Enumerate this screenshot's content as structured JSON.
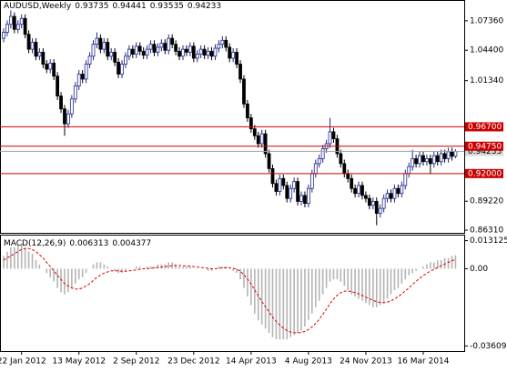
{
  "chart_data": [
    {
      "type": "candlestick",
      "title": "AUDUSD,Weekly",
      "up_color": "#1f2a8a",
      "down_color": "#000000",
      "categories": [
        null,
        null,
        null,
        null,
        null,
        "22 Jan 2012",
        null,
        null,
        null,
        null,
        null,
        null,
        null,
        null,
        null,
        null,
        null,
        null,
        null,
        null,
        null,
        "13 May 2012",
        null,
        null,
        null,
        null,
        null,
        null,
        null,
        null,
        null,
        null,
        null,
        null,
        null,
        null,
        null,
        "2 Sep 2012",
        null,
        null,
        null,
        null,
        null,
        null,
        null,
        null,
        null,
        null,
        null,
        null,
        null,
        null,
        null,
        "23 Dec 2012",
        null,
        null,
        null,
        null,
        null,
        null,
        null,
        null,
        null,
        null,
        null,
        null,
        null,
        null,
        null,
        "14 Apr 2013",
        null,
        null,
        null,
        null,
        null,
        null,
        null,
        null,
        null,
        null,
        null,
        null,
        null,
        null,
        null,
        "4 Aug 2013",
        null,
        null,
        null,
        null,
        null,
        null,
        null,
        null,
        null,
        null,
        null,
        null,
        null,
        null,
        null,
        "24 Nov 2013",
        null,
        null,
        null,
        null,
        null,
        null,
        null,
        null,
        null,
        null,
        null,
        null,
        null,
        null,
        null,
        "16 Mar 2014",
        null,
        null,
        null,
        null,
        null,
        null,
        null,
        null,
        null
      ],
      "open": [
        1.056,
        1.062,
        1.07,
        1.078,
        1.065,
        1.07,
        1.076,
        1.06,
        1.045,
        1.052,
        1.038,
        1.042,
        1.03,
        1.025,
        1.031,
        1.018,
        0.998,
        0.985,
        0.97,
        0.98,
        0.995,
        1.008,
        1.02,
        1.015,
        1.03,
        1.038,
        1.05,
        1.056,
        1.045,
        1.052,
        1.038,
        1.042,
        1.032,
        1.02,
        1.03,
        1.038,
        1.045,
        1.04,
        1.048,
        1.043,
        1.039,
        1.045,
        1.05,
        1.042,
        1.047,
        1.051,
        1.044,
        1.056,
        1.05,
        1.043,
        1.038,
        1.045,
        1.042,
        1.048,
        1.036,
        1.04,
        1.045,
        1.039,
        1.043,
        1.038,
        1.046,
        1.05,
        1.054,
        1.047,
        1.036,
        1.042,
        1.03,
        1.015,
        0.99,
        0.976,
        0.965,
        0.958,
        0.95,
        0.96,
        0.94,
        0.925,
        0.91,
        0.902,
        0.915,
        0.908,
        0.895,
        0.905,
        0.912,
        0.892,
        0.898,
        0.89,
        0.905,
        0.92,
        0.93,
        0.935,
        0.945,
        0.95,
        0.962,
        0.955,
        0.94,
        0.93,
        0.92,
        0.915,
        0.905,
        0.9,
        0.908,
        0.898,
        0.895,
        0.888,
        0.892,
        0.88,
        0.885,
        0.895,
        0.9,
        0.895,
        0.905,
        0.9,
        0.908,
        0.92,
        0.927,
        0.935,
        0.93,
        0.938,
        0.932,
        0.935,
        0.93,
        0.938,
        0.932,
        0.94,
        0.935,
        0.942,
        0.93735
      ],
      "high": [
        1.066,
        1.074,
        1.084,
        1.082,
        1.074,
        1.08,
        1.08,
        1.064,
        1.056,
        1.056,
        1.046,
        1.046,
        1.034,
        1.035,
        1.035,
        1.022,
        1.002,
        0.989,
        0.984,
        0.999,
        1.012,
        1.024,
        1.024,
        1.034,
        1.042,
        1.054,
        1.062,
        1.06,
        1.056,
        1.056,
        1.046,
        1.046,
        1.036,
        1.034,
        1.042,
        1.049,
        1.049,
        1.052,
        1.052,
        1.047,
        1.049,
        1.054,
        1.054,
        1.051,
        1.055,
        1.055,
        1.06,
        1.06,
        1.054,
        1.047,
        1.049,
        1.049,
        1.052,
        1.052,
        1.044,
        1.049,
        1.049,
        1.047,
        1.047,
        1.05,
        1.054,
        1.058,
        1.058,
        1.051,
        1.046,
        1.046,
        1.034,
        1.019,
        0.994,
        0.98,
        0.969,
        0.962,
        0.964,
        0.964,
        0.944,
        0.929,
        0.914,
        0.919,
        0.919,
        0.912,
        0.909,
        0.916,
        0.916,
        0.902,
        0.902,
        0.909,
        0.924,
        0.934,
        0.939,
        0.949,
        0.954,
        0.976,
        0.966,
        0.959,
        0.944,
        0.934,
        0.924,
        0.919,
        0.909,
        0.912,
        0.912,
        0.902,
        0.899,
        0.896,
        0.896,
        0.889,
        0.899,
        0.904,
        0.904,
        0.909,
        0.909,
        0.912,
        0.924,
        0.931,
        0.944,
        0.939,
        0.942,
        0.942,
        0.939,
        0.939,
        0.942,
        0.942,
        0.944,
        0.944,
        0.946,
        0.946,
        0.94441
      ],
      "low": [
        1.052,
        1.058,
        1.066,
        1.061,
        1.061,
        1.066,
        1.056,
        1.041,
        1.041,
        1.034,
        1.034,
        1.026,
        1.021,
        1.021,
        1.014,
        0.994,
        0.981,
        0.958,
        0.966,
        0.976,
        0.991,
        1.004,
        1.011,
        1.011,
        1.026,
        1.034,
        1.046,
        1.041,
        1.041,
        1.034,
        1.034,
        1.028,
        1.016,
        1.016,
        1.026,
        1.034,
        1.036,
        1.036,
        1.039,
        1.035,
        1.035,
        1.041,
        1.038,
        1.038,
        1.043,
        1.04,
        1.04,
        1.046,
        1.039,
        1.034,
        1.034,
        1.038,
        1.038,
        1.032,
        1.032,
        1.036,
        1.035,
        1.035,
        1.034,
        1.034,
        1.042,
        1.046,
        1.043,
        1.032,
        1.032,
        1.026,
        1.011,
        0.986,
        0.972,
        0.961,
        0.954,
        0.946,
        0.946,
        0.936,
        0.921,
        0.906,
        0.898,
        0.898,
        0.904,
        0.891,
        0.891,
        0.901,
        0.888,
        0.888,
        0.886,
        0.886,
        0.901,
        0.916,
        0.926,
        0.931,
        0.941,
        0.946,
        0.951,
        0.936,
        0.926,
        0.916,
        0.911,
        0.901,
        0.896,
        0.896,
        0.894,
        0.891,
        0.884,
        0.884,
        0.868,
        0.876,
        0.881,
        0.891,
        0.891,
        0.891,
        0.896,
        0.896,
        0.904,
        0.916,
        0.923,
        0.926,
        0.926,
        0.928,
        0.928,
        0.92,
        0.926,
        0.928,
        0.928,
        0.931,
        0.931,
        0.933,
        0.93535
      ],
      "close": [
        1.062,
        1.07,
        1.078,
        1.065,
        1.07,
        1.076,
        1.06,
        1.045,
        1.052,
        1.038,
        1.042,
        1.03,
        1.025,
        1.031,
        1.018,
        0.998,
        0.985,
        0.97,
        0.98,
        0.995,
        1.008,
        1.02,
        1.015,
        1.03,
        1.038,
        1.05,
        1.056,
        1.045,
        1.052,
        1.038,
        1.042,
        1.032,
        1.02,
        1.03,
        1.038,
        1.045,
        1.04,
        1.048,
        1.043,
        1.039,
        1.045,
        1.05,
        1.042,
        1.047,
        1.051,
        1.044,
        1.056,
        1.05,
        1.043,
        1.038,
        1.045,
        1.042,
        1.048,
        1.036,
        1.04,
        1.045,
        1.039,
        1.043,
        1.038,
        1.046,
        1.05,
        1.054,
        1.047,
        1.036,
        1.042,
        1.03,
        1.015,
        0.99,
        0.976,
        0.965,
        0.958,
        0.95,
        0.96,
        0.94,
        0.925,
        0.91,
        0.902,
        0.915,
        0.908,
        0.895,
        0.905,
        0.912,
        0.892,
        0.898,
        0.89,
        0.905,
        0.92,
        0.93,
        0.935,
        0.945,
        0.95,
        0.962,
        0.955,
        0.94,
        0.93,
        0.92,
        0.915,
        0.905,
        0.9,
        0.908,
        0.898,
        0.895,
        0.888,
        0.892,
        0.88,
        0.885,
        0.895,
        0.9,
        0.895,
        0.905,
        0.9,
        0.908,
        0.92,
        0.927,
        0.935,
        0.93,
        0.938,
        0.932,
        0.935,
        0.93,
        0.938,
        0.932,
        0.94,
        0.935,
        0.942,
        0.93735,
        0.94233
      ],
      "ylim": [
        0.8604,
        1.0936
      ],
      "yticks": [
        {
          "value": 1.0736,
          "label": "1.07360"
        },
        {
          "value": 1.044,
          "label": "1.04400"
        },
        {
          "value": 1.0134,
          "label": "1.01340"
        },
        {
          "value": 0.8922,
          "label": "0.89220"
        },
        {
          "value": 0.8631,
          "label": "0.86310"
        }
      ],
      "hlines": [
        {
          "value": 0.967,
          "label": "0.96700"
        },
        {
          "value": 0.9475,
          "label": "0.94750"
        },
        {
          "value": 0.92,
          "label": "0.92000"
        }
      ],
      "hline_color": "#cc0000",
      "last_price_color": "#a0a0a0"
    },
    {
      "type": "macd",
      "title": "MACD(12,26,9)",
      "series": [
        {
          "color": "#b4b4b4",
          "values": [
            0.006,
            0.008,
            0.01,
            0.01,
            0.011,
            0.012,
            0.01,
            0.008,
            0.007,
            0.004,
            0.002,
            0.0,
            -0.002,
            -0.004,
            -0.006,
            -0.009,
            -0.011,
            -0.012,
            -0.011,
            -0.009,
            -0.007,
            -0.005,
            -0.004,
            -0.002,
            0.0,
            0.002,
            0.003,
            0.003,
            0.002,
            0.001,
            0.0,
            -0.001,
            -0.002,
            -0.002,
            -0.001,
            0.0,
            0.0,
            0.001,
            0.001,
            0.0,
            0.001,
            0.001,
            0.001,
            0.002,
            0.002,
            0.002,
            0.003,
            0.003,
            0.002,
            0.001,
            0.001,
            0.001,
            0.001,
            0.0,
            0.0,
            0.0,
            0.0,
            -0.001,
            -0.001,
            0.0,
            0.001,
            0.001,
            0.001,
            0.0,
            -0.001,
            -0.002,
            -0.005,
            -0.009,
            -0.013,
            -0.017,
            -0.021,
            -0.024,
            -0.026,
            -0.028,
            -0.03,
            -0.032,
            -0.033,
            -0.033,
            -0.033,
            -0.033,
            -0.032,
            -0.031,
            -0.03,
            -0.029,
            -0.027,
            -0.024,
            -0.021,
            -0.018,
            -0.015,
            -0.012,
            -0.009,
            -0.006,
            -0.005,
            -0.005,
            -0.006,
            -0.008,
            -0.01,
            -0.012,
            -0.013,
            -0.014,
            -0.015,
            -0.016,
            -0.017,
            -0.018,
            -0.018,
            -0.017,
            -0.016,
            -0.014,
            -0.012,
            -0.01,
            -0.009,
            -0.007,
            -0.005,
            -0.003,
            -0.002,
            -0.001,
            0.0,
            0.001,
            0.002,
            0.003,
            0.003,
            0.004,
            0.004,
            0.005,
            0.005,
            0.006,
            0.006313
          ]
        },
        {
          "color": "#dd0000",
          "dashed": true,
          "values": [
            0.004,
            0.005,
            0.006,
            0.007,
            0.008,
            0.009,
            0.0095,
            0.0095,
            0.009,
            0.008,
            0.0065,
            0.005,
            0.003,
            0.001,
            -0.001,
            -0.003,
            -0.005,
            -0.007,
            -0.008,
            -0.009,
            -0.0095,
            -0.0095,
            -0.009,
            -0.008,
            -0.007,
            -0.0055,
            -0.004,
            -0.003,
            -0.002,
            -0.0015,
            -0.001,
            -0.001,
            -0.001,
            -0.0012,
            -0.0012,
            -0.001,
            -0.0008,
            -0.0005,
            -0.0003,
            0.0,
            0.0,
            0.0002,
            0.0004,
            0.0006,
            0.0008,
            0.001,
            0.0012,
            0.0014,
            0.0015,
            0.0015,
            0.0014,
            0.0013,
            0.0012,
            0.001,
            0.0008,
            0.0006,
            0.0004,
            0.0002,
            0.0,
            0.0,
            0.0002,
            0.0004,
            0.0005,
            0.0004,
            0.0002,
            -0.0002,
            -0.0012,
            -0.0028,
            -0.0048,
            -0.0072,
            -0.0099,
            -0.0127,
            -0.0153,
            -0.0178,
            -0.0202,
            -0.0226,
            -0.0247,
            -0.0264,
            -0.0278,
            -0.0289,
            -0.0296,
            -0.0299,
            -0.03,
            -0.0298,
            -0.0293,
            -0.0284,
            -0.0272,
            -0.0256,
            -0.0237,
            -0.0214,
            -0.0189,
            -0.0163,
            -0.0141,
            -0.0124,
            -0.0112,
            -0.0105,
            -0.0104,
            -0.0107,
            -0.0112,
            -0.0118,
            -0.0125,
            -0.0133,
            -0.014,
            -0.0148,
            -0.0154,
            -0.0158,
            -0.0159,
            -0.0156,
            -0.015,
            -0.0141,
            -0.013,
            -0.0118,
            -0.0104,
            -0.009,
            -0.0074,
            -0.0059,
            -0.0045,
            -0.0032,
            -0.0021,
            -0.0011,
            -0.0003,
            0.0006,
            0.0014,
            0.0022,
            0.003,
            0.0037,
            0.004377
          ]
        }
      ],
      "ylim": [
        -0.0385,
        0.0155
      ],
      "yticks": [
        0.013125,
        {
          "value": 0,
          "label": "0.00"
        },
        -0.036096
      ]
    }
  ]
}
